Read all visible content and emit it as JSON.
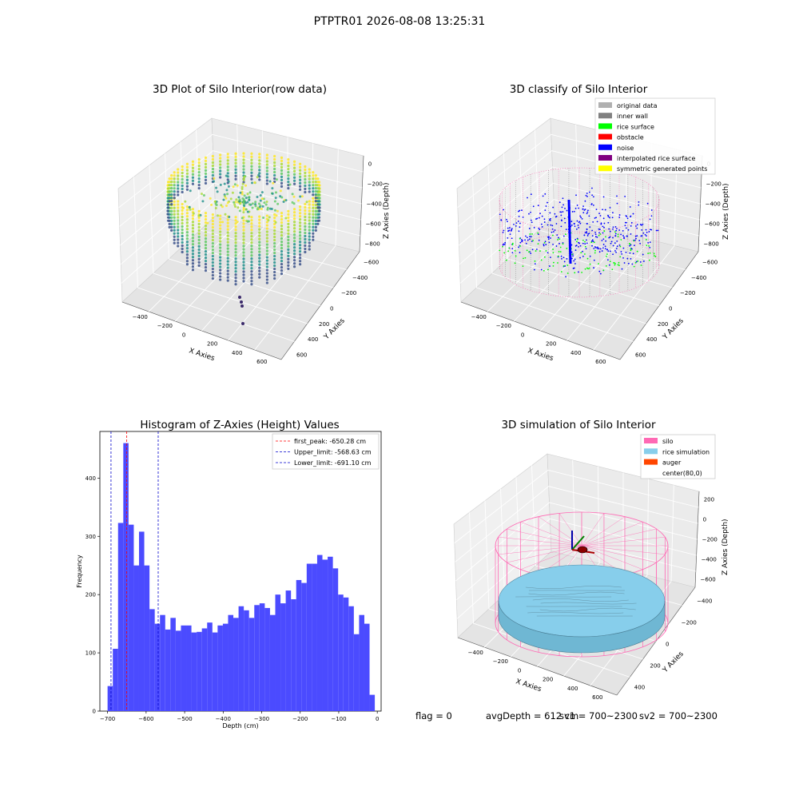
{
  "figure": {
    "suptitle": "PTPTR01 2026-08-08 13:25:31",
    "footer": {
      "flag": "flag = 0",
      "avg_depth": "avgDepth = 612 cm",
      "sv1": "sv1 = 700~2300",
      "sv2": "sv2 = 700~2300"
    }
  },
  "colors": {
    "grid_pane": "#f2f2f2",
    "histogram_bar": "#4b4bff",
    "first_peak_line": "#ff0000",
    "limit_lines": "#0000cc",
    "silo": "#ff69b4",
    "rice_simulation": "#87ceeb",
    "auger": "#ff4500",
    "original_data": "#b0b0b0",
    "inner_wall": "#808080",
    "rice_surface": "#00ff00",
    "obstacle": "#ff0000",
    "noise": "#0000ff",
    "interpolated_rice_surface": "#800080",
    "symmetric_generated_points": "#ffff00"
  },
  "chart_data": [
    {
      "type": "scatter",
      "subtype": "3d",
      "title": "3D Plot of Silo Interior(row data)",
      "xlabel": "X Axies",
      "ylabel": "Y Axies",
      "zlabel": "Z Axies (Depth)",
      "xticks": [
        "−400",
        "−200",
        "0",
        "200",
        "400",
        "600"
      ],
      "yticks": [
        "−600",
        "−400",
        "−200",
        "0",
        "200",
        "400",
        "600"
      ],
      "zticks": [
        "0",
        "−200",
        "−400",
        "−600",
        "−800"
      ],
      "xlim": [
        -500,
        650
      ],
      "ylim": [
        -650,
        650
      ],
      "zlim": [
        -900,
        50
      ],
      "colormap": "viridis"
    },
    {
      "type": "scatter",
      "subtype": "3d",
      "title": "3D classify of Silo Interior",
      "xlabel": "X Axies",
      "ylabel": "Y Axies",
      "zlabel": "Z Axies (Depth)",
      "xticks": [
        "−400",
        "−200",
        "0",
        "200",
        "400",
        "600"
      ],
      "yticks": [
        "−600",
        "−400",
        "−200",
        "0",
        "200",
        "400",
        "600"
      ],
      "zticks": [
        "0",
        "−200",
        "−400",
        "−600",
        "−800"
      ],
      "legend": [
        "original data",
        "inner wall",
        "rice surface",
        "obstacle",
        "noise",
        "interpolated rice surface",
        "symmetric generated points"
      ],
      "legend_placement": "top-right"
    },
    {
      "type": "bar",
      "subtype": "histogram",
      "title": "Histogram of Z-Axies (Height) Values",
      "xlabel": "Depth (cm)",
      "ylabel": "Frequency",
      "xlim": [
        -720,
        10
      ],
      "ylim": [
        0,
        480
      ],
      "xticks": [
        -700,
        -600,
        -500,
        -400,
        -300,
        -200,
        -100,
        0
      ],
      "xtick_labels": [
        "−700",
        "−600",
        "−500",
        "−400",
        "−300",
        "−200",
        "−100",
        "0"
      ],
      "yticks": [
        0,
        100,
        200,
        300,
        400
      ],
      "bin_start": -700,
      "bin_width": 13.6,
      "values": [
        43,
        107,
        323,
        460,
        320,
        250,
        308,
        250,
        175,
        150,
        165,
        140,
        160,
        138,
        147,
        147,
        135,
        136,
        142,
        152,
        135,
        147,
        150,
        165,
        160,
        180,
        173,
        160,
        182,
        185,
        177,
        165,
        200,
        185,
        207,
        192,
        225,
        220,
        253,
        253,
        268,
        260,
        265,
        245,
        200,
        195,
        180,
        132,
        165,
        150,
        28
      ],
      "lines": [
        {
          "label": "first_peak: -650.28 cm",
          "x": -650.28,
          "style": "dashed",
          "color": "red"
        },
        {
          "label": "Upper_limit: -568.63 cm",
          "x": -568.63,
          "style": "dashed",
          "color": "blue"
        },
        {
          "label": "Lower_limit: -691.10 cm",
          "x": -691.1,
          "style": "dashed",
          "color": "blue"
        }
      ],
      "legend_placement": "top-right"
    },
    {
      "type": "area",
      "subtype": "3d-surface",
      "title": "3D simulation of Silo Interior",
      "xlabel": "X Axies",
      "ylabel": "Y Axies",
      "zlabel": "Z Axies (Depth)",
      "xticks": [
        "−400",
        "−200",
        "0",
        "200",
        "400",
        "600"
      ],
      "yticks": [
        "−400",
        "−200",
        "0",
        "200",
        "400"
      ],
      "zticks": [
        "200",
        "0",
        "−200",
        "−400",
        "−600"
      ],
      "legend": [
        "silo",
        "rice simulation",
        "auger",
        "center(80,0)"
      ],
      "legend_placement": "top-right"
    }
  ]
}
